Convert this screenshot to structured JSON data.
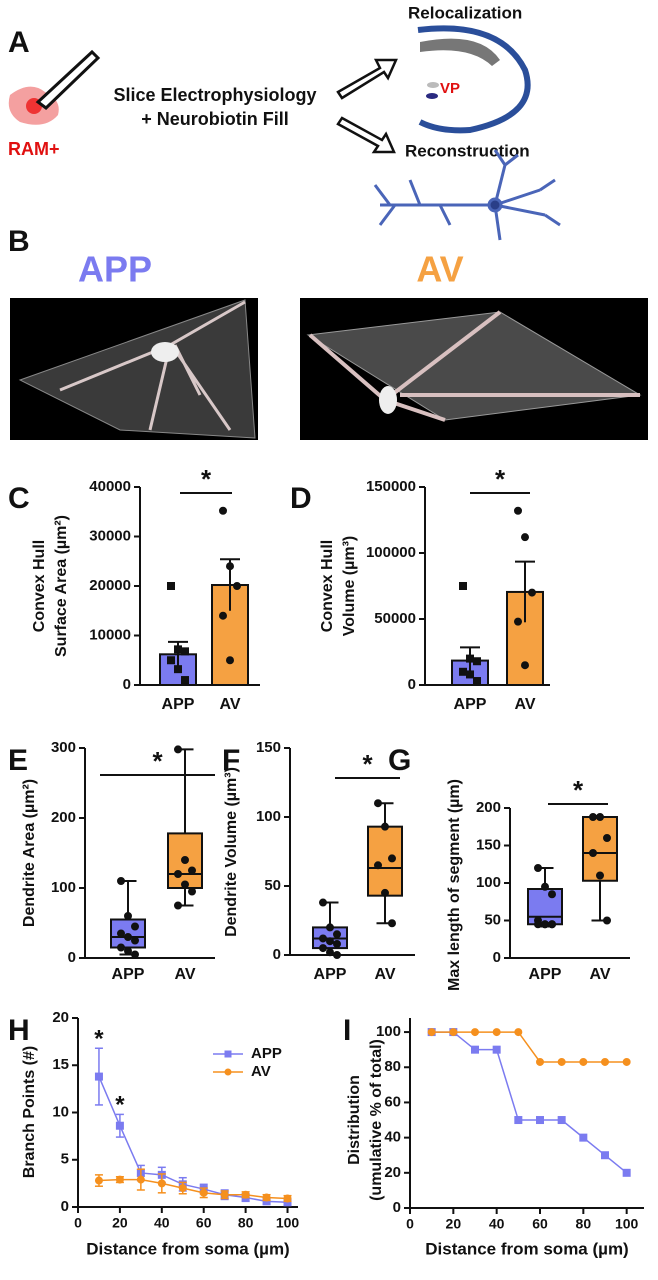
{
  "panel_a": {
    "label": "A",
    "cell_label": "RAM+",
    "method": [
      "Slice Electrophysiology",
      "+ Neurobiotin Fill"
    ],
    "outputs": [
      "Relocalization",
      "Reconstruction"
    ],
    "region": "VP"
  },
  "panel_b": {
    "label": "B",
    "groups": [
      "APP",
      "AV"
    ]
  },
  "chart_data": [
    {
      "type": "bar",
      "panel": "C",
      "ylabel": [
        "Convex Hull",
        "Surface Area (µm²)"
      ],
      "categories": [
        "APP",
        "AV"
      ],
      "values": [
        6200,
        20200
      ],
      "errors": [
        2500,
        5200
      ],
      "points": [
        [
          20000,
          7200,
          6800,
          5000,
          3200,
          1000
        ],
        [
          35200,
          24000,
          20000,
          14000,
          5000
        ]
      ],
      "markers": [
        "square",
        "circle"
      ],
      "colors": [
        "#7b7bf0",
        "#f5a142"
      ],
      "ylim": [
        0,
        40000
      ],
      "yticks": [
        0,
        10000,
        20000,
        30000,
        40000
      ],
      "significance": "*"
    },
    {
      "type": "bar",
      "panel": "D",
      "ylabel": [
        "Convex Hull",
        "Volume (µm³)"
      ],
      "categories": [
        "APP",
        "AV"
      ],
      "values": [
        18500,
        70500
      ],
      "errors": [
        10000,
        23000
      ],
      "points": [
        [
          75000,
          20000,
          18000,
          10000,
          8000,
          3000
        ],
        [
          132000,
          112000,
          70000,
          48000,
          15000
        ]
      ],
      "markers": [
        "square",
        "circle"
      ],
      "colors": [
        "#7b7bf0",
        "#f5a142"
      ],
      "ylim": [
        0,
        150000
      ],
      "yticks": [
        0,
        50000,
        100000,
        150000
      ],
      "significance": "*"
    },
    {
      "type": "box",
      "panel": "E",
      "ylabel": [
        "Dendrite Area (µm²)"
      ],
      "categories": [
        "APP",
        "AV"
      ],
      "boxes": [
        {
          "min": 5,
          "q1": 15,
          "median": 30,
          "q3": 55,
          "max": 110,
          "points": [
            110,
            60,
            45,
            35,
            30,
            25,
            15,
            10,
            5
          ]
        },
        {
          "min": 75,
          "q1": 100,
          "median": 120,
          "q3": 178,
          "max": 298,
          "points": [
            298,
            140,
            125,
            120,
            105,
            95,
            75
          ]
        }
      ],
      "colors": [
        "#7b7bf0",
        "#f5a142"
      ],
      "ylim": [
        0,
        300
      ],
      "yticks": [
        0,
        100,
        200,
        300
      ],
      "significance": "*"
    },
    {
      "type": "box",
      "panel": "F",
      "ylabel": [
        "Dendrite Volume (µm³)"
      ],
      "categories": [
        "APP",
        "AV"
      ],
      "boxes": [
        {
          "min": 0,
          "q1": 5,
          "median": 12,
          "q3": 20,
          "max": 38,
          "points": [
            38,
            20,
            15,
            12,
            10,
            8,
            5,
            2,
            0
          ]
        },
        {
          "min": 23,
          "q1": 43,
          "median": 63,
          "q3": 93,
          "max": 110,
          "points": [
            110,
            93,
            70,
            65,
            45,
            23
          ]
        }
      ],
      "colors": [
        "#7b7bf0",
        "#f5a142"
      ],
      "ylim": [
        0,
        150
      ],
      "yticks": [
        0,
        50,
        100,
        150
      ],
      "significance": "*"
    },
    {
      "type": "box",
      "panel": "G",
      "ylabel": [
        "Max length of segment (µm)"
      ],
      "categories": [
        "APP",
        "AV"
      ],
      "boxes": [
        {
          "min": 42,
          "q1": 45,
          "median": 55,
          "q3": 92,
          "max": 120,
          "points": [
            120,
            95,
            85,
            50,
            45,
            45,
            45,
            45,
            45
          ]
        },
        {
          "min": 50,
          "q1": 103,
          "median": 140,
          "q3": 188,
          "max": 188,
          "points": [
            188,
            188,
            160,
            140,
            110,
            50
          ]
        }
      ],
      "colors": [
        "#7b7bf0",
        "#f5a142"
      ],
      "ylim": [
        0,
        200
      ],
      "yticks": [
        0,
        50,
        100,
        150,
        200
      ],
      "significance": "*"
    },
    {
      "type": "line",
      "panel": "H",
      "ylabel": [
        "Branch Points (#)"
      ],
      "xlabel": "Distance from soma (µm)",
      "x": [
        10,
        20,
        30,
        40,
        50,
        60,
        70,
        80,
        90,
        100
      ],
      "series": [
        {
          "name": "APP",
          "color": "#7b7bf0",
          "marker": "square",
          "values": [
            13.8,
            8.6,
            3.6,
            3.4,
            2.4,
            1.9,
            1.3,
            1.0,
            0.6,
            0.5
          ],
          "errors": [
            3,
            1.2,
            0.8,
            0.8,
            0.7,
            0.5,
            0.5,
            0.4,
            0.3,
            0.3
          ]
        },
        {
          "name": "AV",
          "color": "#f5901e",
          "marker": "circle",
          "values": [
            2.8,
            2.9,
            2.9,
            2.5,
            2.0,
            1.5,
            1.3,
            1.3,
            1.0,
            0.9
          ],
          "errors": [
            0.6,
            0.3,
            1.1,
            1.0,
            0.6,
            0.5,
            0.4,
            0.3,
            0.3,
            0.3
          ]
        }
      ],
      "annotations": [
        "*",
        "*"
      ],
      "xlim": [
        0,
        105
      ],
      "xticks": [
        0,
        20,
        40,
        60,
        80,
        100
      ],
      "ylim": [
        0,
        20
      ],
      "yticks": [
        0,
        5,
        10,
        15,
        20
      ],
      "legend": "upper right"
    },
    {
      "type": "line",
      "panel": "I",
      "ylabel": [
        "Distribution",
        "(umulative % of total)"
      ],
      "xlabel": "Distance from soma (µm)",
      "x": [
        10,
        20,
        30,
        40,
        50,
        60,
        70,
        80,
        90,
        100
      ],
      "series": [
        {
          "name": "APP",
          "color": "#7b7bf0",
          "marker": "square",
          "values": [
            100,
            100,
            90,
            90,
            50,
            50,
            50,
            40,
            30,
            20
          ]
        },
        {
          "name": "AV",
          "color": "#f5901e",
          "marker": "circle",
          "values": [
            100,
            100,
            100,
            100,
            100,
            83,
            83,
            83,
            83,
            83
          ]
        }
      ],
      "xlim": [
        0,
        108
      ],
      "xticks": [
        0,
        20,
        40,
        60,
        80,
        100
      ],
      "ylim": [
        0,
        108
      ],
      "yticks": [
        0,
        20,
        40,
        60,
        80,
        100
      ]
    }
  ]
}
